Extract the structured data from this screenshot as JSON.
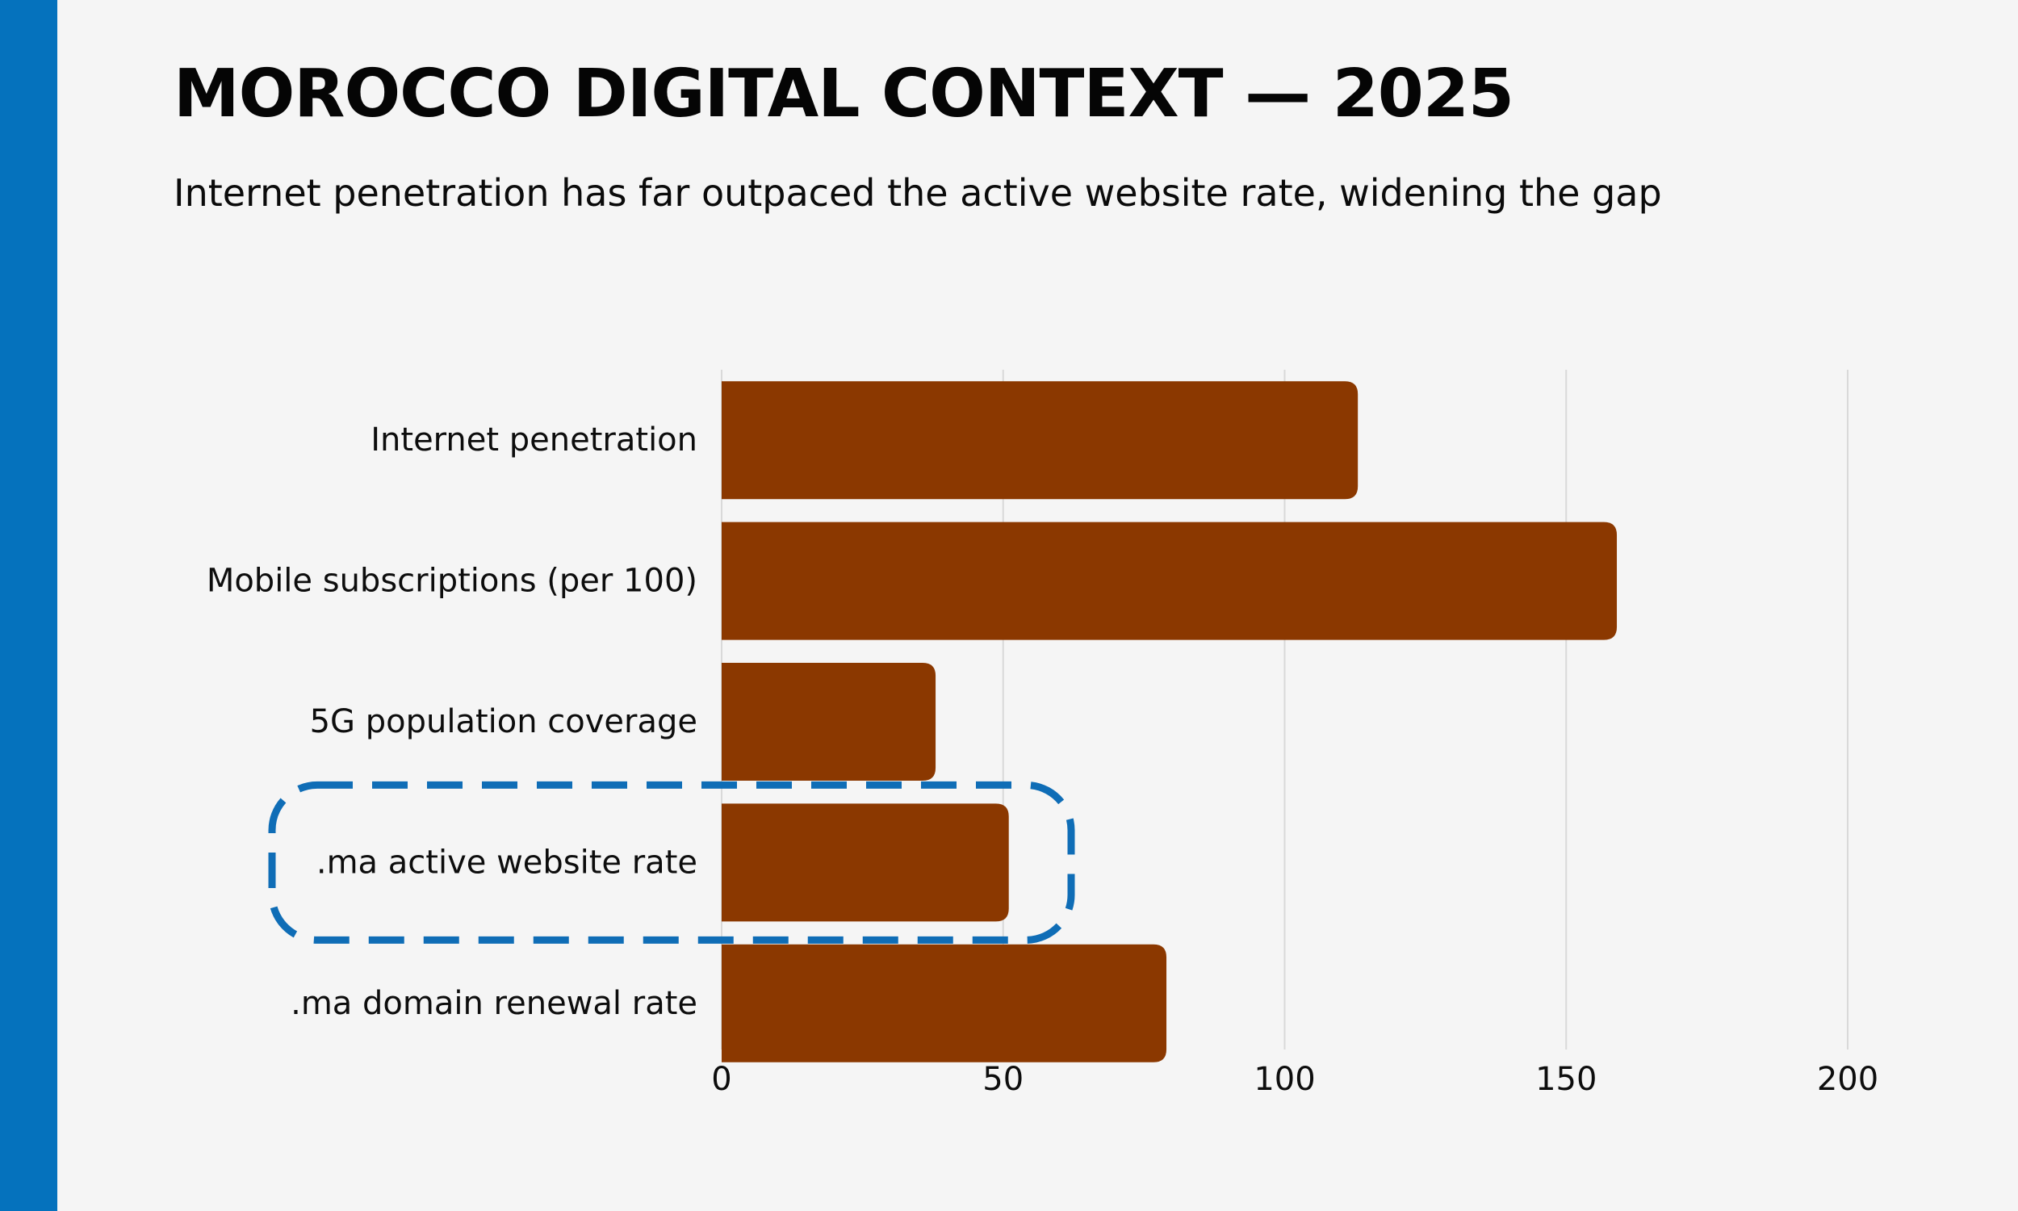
{
  "title": "MOROCCO DIGITAL CONTEXT — 2025",
  "subtitle": "Internet penetration has far outpaced the active website rate, widening the gap",
  "colors": {
    "accent": "#0572bd",
    "bar": "#8b3800",
    "highlight": "#0f6db6",
    "grid": "#d9d9d9",
    "background": "#f5f5f5"
  },
  "chart_data": {
    "type": "bar",
    "orientation": "horizontal",
    "categories": [
      "Internet penetration",
      "Mobile subscriptions (per 100)",
      "5G population coverage",
      ".ma active website rate",
      ".ma domain renewal rate"
    ],
    "values": [
      113,
      159,
      38,
      51,
      79
    ],
    "xlim": [
      0,
      200
    ],
    "xticks": [
      0,
      50,
      100,
      150,
      200
    ],
    "grid": "vertical",
    "title": "",
    "xlabel": "",
    "ylabel": "",
    "highlighted_category": ".ma active website rate"
  }
}
